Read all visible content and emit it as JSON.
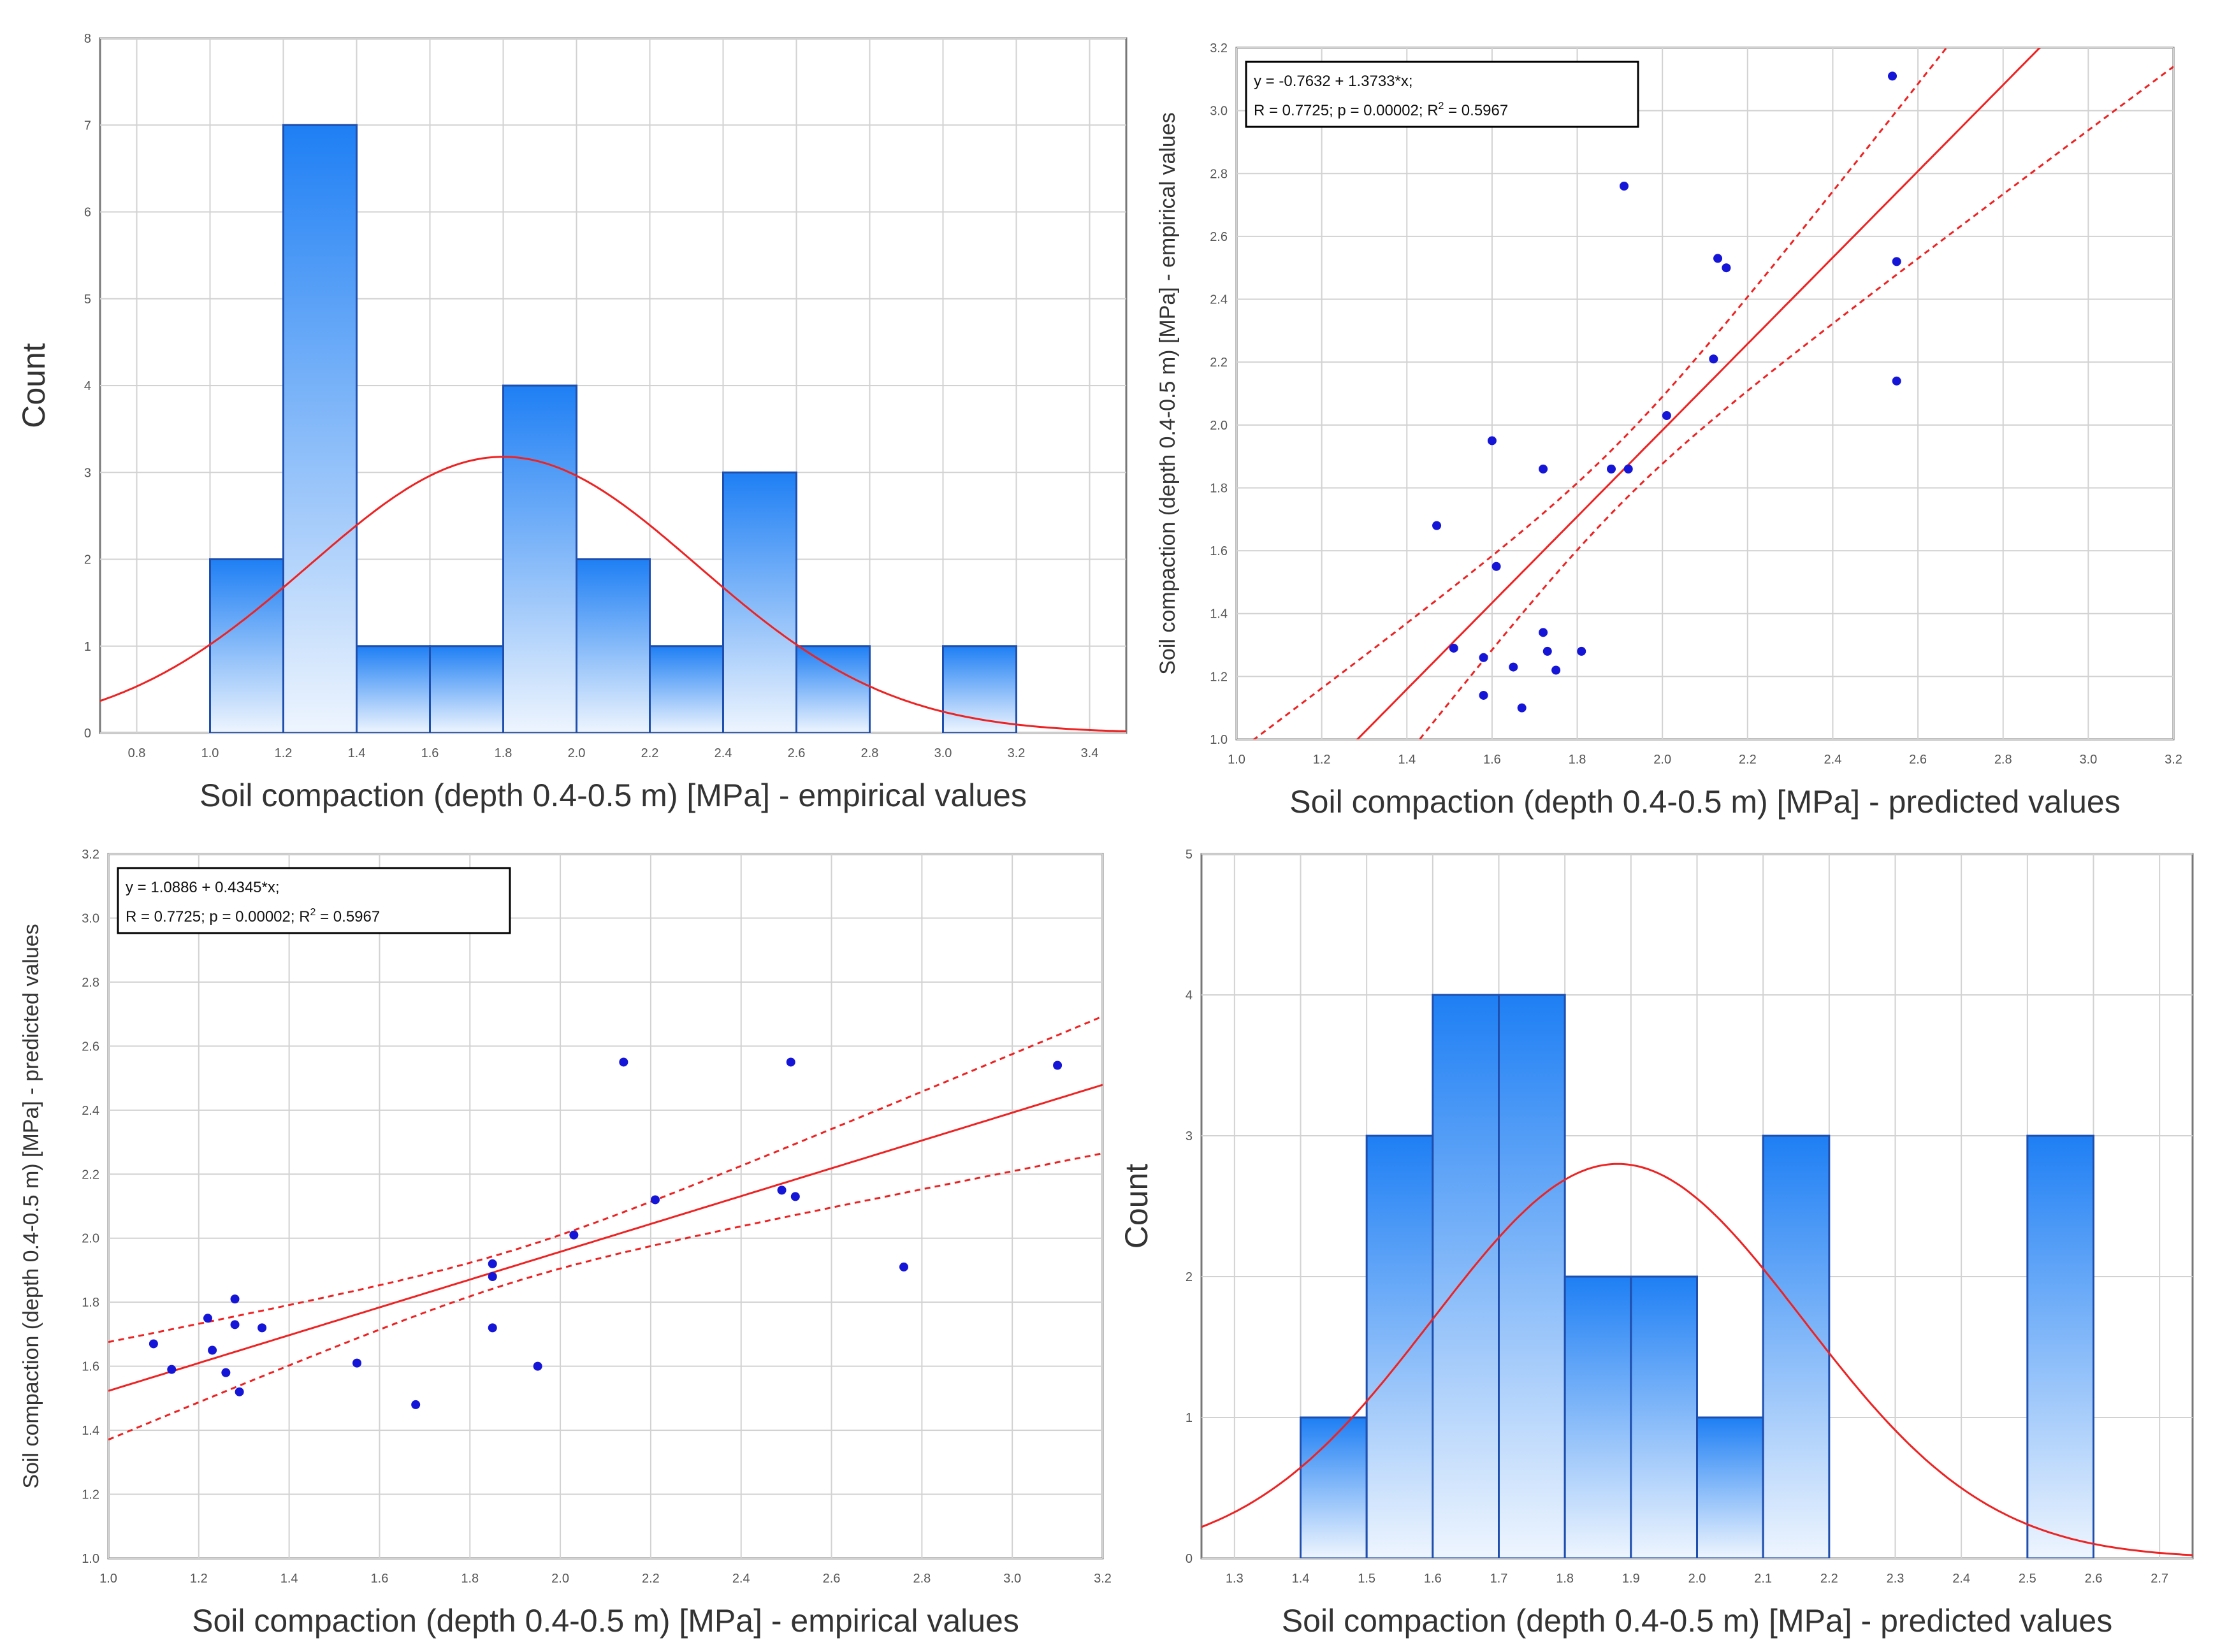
{
  "chart_data": [
    {
      "type": "bar",
      "subtype": "histogram",
      "xlabel": "Soil compaction (depth 0.4-0.5 m) [MPa] - empirical values",
      "ylabel": "Count",
      "xlim": [
        0.7,
        3.5
      ],
      "ylim": [
        0,
        8
      ],
      "xticks": [
        "0.8",
        "1.0",
        "1.2",
        "1.4",
        "1.6",
        "1.8",
        "2.0",
        "2.2",
        "2.4",
        "2.6",
        "2.8",
        "3.0",
        "3.2",
        "3.4"
      ],
      "yticks": [
        "0",
        "1",
        "2",
        "3",
        "4",
        "5",
        "6",
        "7",
        "8"
      ],
      "bin_width": 0.2,
      "bin_starts": [
        1.0,
        1.2,
        1.4,
        1.6,
        1.8,
        2.0,
        2.2,
        2.4,
        2.6,
        2.8,
        3.0
      ],
      "values": [
        2,
        7,
        1,
        1,
        4,
        2,
        1,
        3,
        1,
        0,
        1
      ],
      "normal_curve": {
        "mean": 1.8,
        "sd": 0.53,
        "peak_count": 3.18
      }
    },
    {
      "type": "scatter",
      "xlabel": "Soil compaction (depth 0.4-0.5 m) [MPa] - predicted values",
      "ylabel": "Soil compaction (depth 0.4-0.5 m) [MPa] - empirical values",
      "xlim": [
        1.0,
        3.2
      ],
      "ylim": [
        1.0,
        3.2
      ],
      "xticks": [
        "1.0",
        "1.2",
        "1.4",
        "1.6",
        "1.8",
        "2.0",
        "2.2",
        "2.4",
        "2.6",
        "2.8",
        "3.0",
        "3.2"
      ],
      "yticks": [
        "1.0",
        "1.2",
        "1.4",
        "1.6",
        "1.8",
        "2.0",
        "2.2",
        "2.4",
        "2.6",
        "2.8",
        "3.0",
        "3.2"
      ],
      "equation": "y = -0.7632 + 1.3733*x;",
      "stats": "R = 0.7725; p = 0.00002; R",
      "stats_sup": "2",
      "stats_tail": " = 0.5967",
      "fit": {
        "intercept": -0.7632,
        "slope": 1.3733
      },
      "ci": {
        "x0": 1.9,
        "half_width_at_x0": 0.1,
        "spread": 0.37
      },
      "points": [
        {
          "x": 2.54,
          "y": 3.11
        },
        {
          "x": 1.91,
          "y": 2.76
        },
        {
          "x": 2.13,
          "y": 2.53
        },
        {
          "x": 2.15,
          "y": 2.5
        },
        {
          "x": 2.55,
          "y": 2.52
        },
        {
          "x": 2.12,
          "y": 2.21
        },
        {
          "x": 2.55,
          "y": 2.14
        },
        {
          "x": 2.01,
          "y": 2.03
        },
        {
          "x": 1.6,
          "y": 1.95
        },
        {
          "x": 1.72,
          "y": 1.86
        },
        {
          "x": 1.88,
          "y": 1.86
        },
        {
          "x": 1.92,
          "y": 1.86
        },
        {
          "x": 1.47,
          "y": 1.68
        },
        {
          "x": 1.61,
          "y": 1.55
        },
        {
          "x": 1.72,
          "y": 1.34
        },
        {
          "x": 1.51,
          "y": 1.29
        },
        {
          "x": 1.73,
          "y": 1.28
        },
        {
          "x": 1.81,
          "y": 1.28
        },
        {
          "x": 1.58,
          "y": 1.26
        },
        {
          "x": 1.65,
          "y": 1.23
        },
        {
          "x": 1.75,
          "y": 1.22
        },
        {
          "x": 1.58,
          "y": 1.14
        },
        {
          "x": 1.67,
          "y": 1.1
        }
      ]
    },
    {
      "type": "scatter",
      "xlabel": "Soil compaction (depth 0.4-0.5 m) [MPa] - empirical values",
      "ylabel": "Soil compaction (depth 0.4-0.5 m) [MPa] - predicted values",
      "xlim": [
        1.0,
        3.2
      ],
      "ylim": [
        1.0,
        3.2
      ],
      "xticks": [
        "1.0",
        "1.2",
        "1.4",
        "1.6",
        "1.8",
        "2.0",
        "2.2",
        "2.4",
        "2.6",
        "2.8",
        "3.0",
        "3.2"
      ],
      "yticks": [
        "1.0",
        "1.2",
        "1.4",
        "1.6",
        "1.8",
        "2.0",
        "2.2",
        "2.4",
        "2.6",
        "2.8",
        "3.0",
        "3.2"
      ],
      "equation": "y = 1.0886 + 0.4345*x;",
      "stats": "R = 0.7725; p = 0.00002; R",
      "stats_sup": "2",
      "stats_tail": " = 0.5967",
      "fit": {
        "intercept": 1.0886,
        "slope": 0.4345
      },
      "ci": {
        "x0": 1.9,
        "half_width_at_x0": 0.05,
        "spread": 0.16
      },
      "points": [
        {
          "x": 2.14,
          "y": 2.55
        },
        {
          "x": 2.51,
          "y": 2.55
        },
        {
          "x": 3.1,
          "y": 2.54
        },
        {
          "x": 2.49,
          "y": 2.15
        },
        {
          "x": 2.52,
          "y": 2.13
        },
        {
          "x": 2.21,
          "y": 2.12
        },
        {
          "x": 2.03,
          "y": 2.01
        },
        {
          "x": 1.85,
          "y": 1.92
        },
        {
          "x": 1.85,
          "y": 1.88
        },
        {
          "x": 2.76,
          "y": 1.91
        },
        {
          "x": 1.28,
          "y": 1.81
        },
        {
          "x": 1.22,
          "y": 1.75
        },
        {
          "x": 1.28,
          "y": 1.73
        },
        {
          "x": 1.34,
          "y": 1.72
        },
        {
          "x": 1.85,
          "y": 1.72
        },
        {
          "x": 1.1,
          "y": 1.67
        },
        {
          "x": 1.23,
          "y": 1.65
        },
        {
          "x": 1.55,
          "y": 1.61
        },
        {
          "x": 1.95,
          "y": 1.6
        },
        {
          "x": 1.14,
          "y": 1.59
        },
        {
          "x": 1.26,
          "y": 1.58
        },
        {
          "x": 1.29,
          "y": 1.52
        },
        {
          "x": 1.68,
          "y": 1.48
        }
      ]
    },
    {
      "type": "bar",
      "subtype": "histogram",
      "xlabel": "Soil compaction (depth 0.4-0.5 m) [MPa] - predicted values",
      "ylabel": "Count",
      "xlim": [
        1.25,
        2.75
      ],
      "ylim": [
        0,
        5
      ],
      "xticks": [
        "1.3",
        "1.4",
        "1.5",
        "1.6",
        "1.7",
        "1.8",
        "1.9",
        "2.0",
        "2.1",
        "2.2",
        "2.3",
        "2.4",
        "2.5",
        "2.6",
        "2.7"
      ],
      "yticks": [
        "0",
        "1",
        "2",
        "3",
        "4",
        "5"
      ],
      "bin_width": 0.1,
      "bin_starts": [
        1.4,
        1.5,
        1.6,
        1.7,
        1.8,
        1.9,
        2.0,
        2.1,
        2.2,
        2.3,
        2.4,
        2.5
      ],
      "values": [
        1,
        3,
        4,
        4,
        2,
        2,
        1,
        3,
        0,
        0,
        0,
        3
      ],
      "normal_curve": {
        "mean": 1.88,
        "sd": 0.28,
        "peak_count": 2.8
      }
    }
  ]
}
